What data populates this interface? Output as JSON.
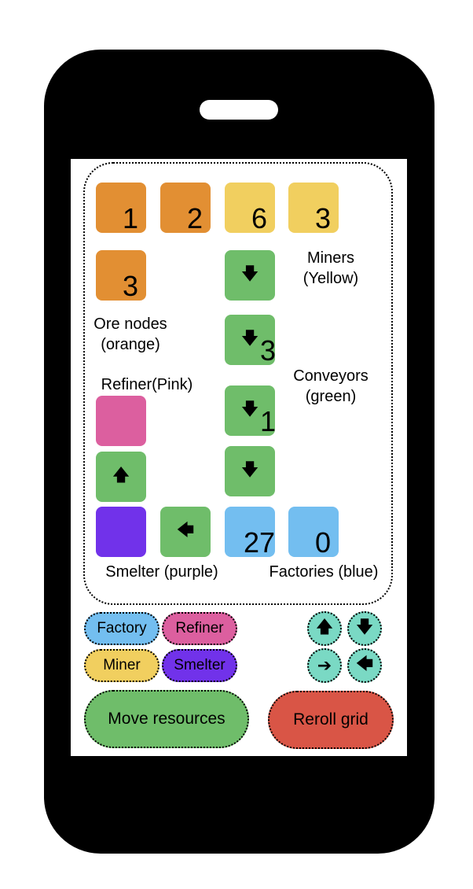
{
  "colors": {
    "ore_node": "#e28f33",
    "miner": "#f1cf5f",
    "conveyor": "#6fbd6a",
    "refiner": "#dc5f9f",
    "smelter": "#7132ea",
    "factory": "#73bef0",
    "direction_button": "#7ad9c4",
    "move_button": "#6fbd6a",
    "reroll_button": "#d95546"
  },
  "grid": {
    "tiles": [
      {
        "id": "ore-1",
        "kind": "ore_node",
        "value": "1"
      },
      {
        "id": "ore-2",
        "kind": "ore_node",
        "value": "2"
      },
      {
        "id": "miner-1",
        "kind": "miner",
        "value": "6"
      },
      {
        "id": "miner-2",
        "kind": "miner",
        "value": "3"
      },
      {
        "id": "ore-3",
        "kind": "ore_node",
        "value": "3"
      },
      {
        "id": "conveyor-1",
        "kind": "conveyor",
        "arrow": "down-arrow-icon",
        "value": ""
      },
      {
        "id": "conveyor-2",
        "kind": "conveyor",
        "arrow": "down-arrow-icon",
        "value": "3"
      },
      {
        "id": "refiner-1",
        "kind": "refiner",
        "value": ""
      },
      {
        "id": "conveyor-3",
        "kind": "conveyor",
        "arrow": "down-arrow-icon",
        "value": "1"
      },
      {
        "id": "conveyor-4",
        "kind": "conveyor",
        "arrow": "up-arrow-icon",
        "value": ""
      },
      {
        "id": "conveyor-5",
        "kind": "conveyor",
        "arrow": "down-arrow-icon",
        "value": ""
      },
      {
        "id": "smelter-1",
        "kind": "smelter",
        "value": ""
      },
      {
        "id": "conveyor-6",
        "kind": "conveyor",
        "arrow": "left-arrow-icon",
        "value": ""
      },
      {
        "id": "factory-1",
        "kind": "factory",
        "value": "27"
      },
      {
        "id": "factory-2",
        "kind": "factory",
        "value": "0"
      }
    ],
    "labels": {
      "miners": "Miners\n(Yellow)",
      "ore_nodes": "Ore nodes\n(orange)",
      "conveyors": "Conveyors\n(green)",
      "refiner": "Refiner(Pink)",
      "smelter": "Smelter (purple)",
      "factories": "Factories (blue)"
    }
  },
  "controls": {
    "factory": "Factory",
    "refiner": "Refiner",
    "miner": "Miner",
    "smelter": "Smelter",
    "move_resources": "Move resources",
    "reroll_grid": "Reroll grid"
  },
  "glyphs": {
    "up": "🡅",
    "down": "🡇",
    "right": "➔",
    "left": "🡄"
  }
}
